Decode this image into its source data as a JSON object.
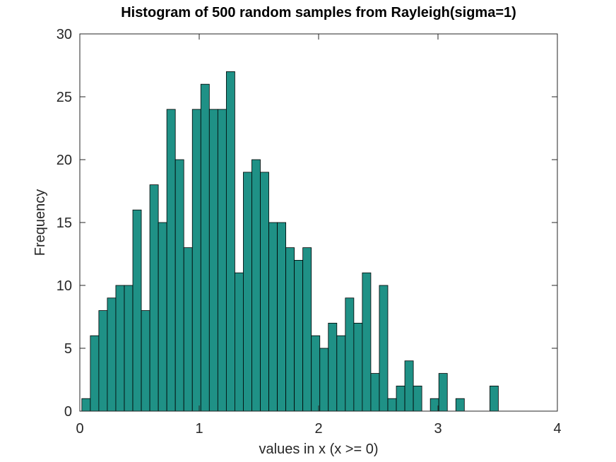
{
  "chart_data": {
    "type": "bar",
    "title": "Histogram of 500 random samples from Rayleigh(sigma=1)",
    "xlabel": "values in x (x >= 0)",
    "ylabel": "Frequency",
    "xlim": [
      0,
      4
    ],
    "ylim": [
      0,
      30
    ],
    "xticks": [
      "0",
      "1",
      "2",
      "3",
      "4"
    ],
    "yticks": [
      "0",
      "5",
      "10",
      "15",
      "20",
      "25",
      "30"
    ],
    "grid": false,
    "bin_start": 0.0167,
    "bin_width": 0.0712,
    "values": [
      1,
      6,
      8,
      9,
      10,
      10,
      16,
      8,
      18,
      15,
      24,
      20,
      13,
      24,
      26,
      24,
      24,
      27,
      11,
      19,
      20,
      19,
      15,
      15,
      13,
      12,
      13,
      6,
      5,
      7,
      6,
      9,
      7,
      11,
      3,
      10,
      1,
      2,
      4,
      2,
      0,
      1,
      3,
      0,
      1,
      0,
      0,
      0,
      2
    ],
    "bar_color": "#1f9186",
    "edge_color": "#000000"
  }
}
